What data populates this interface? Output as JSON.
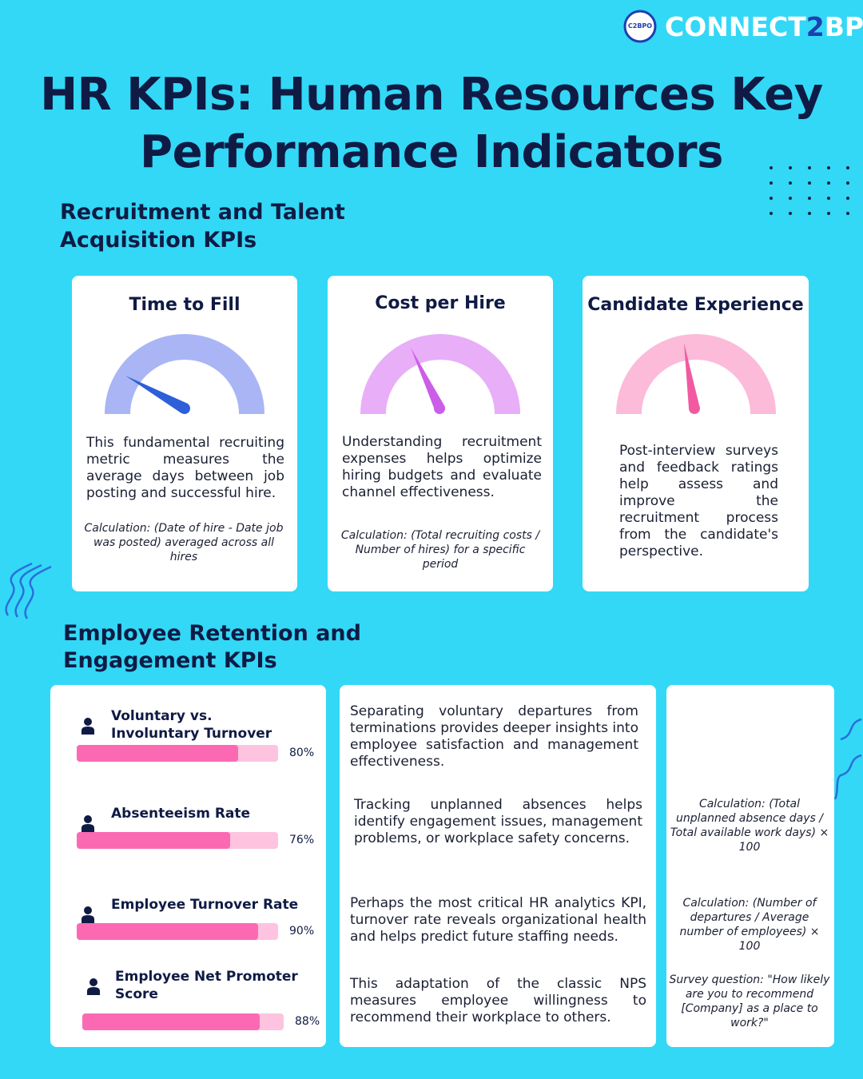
{
  "logo": {
    "icon": "C2BPO",
    "name": [
      "CONNECT",
      "2",
      "BPO"
    ]
  },
  "header": {
    "title": [
      "HR KPIs: Human Resources Key",
      "Performance Indicators"
    ]
  },
  "recruitment": {
    "heading": [
      "Recruitment and Talent",
      "Acquisition KPIs"
    ],
    "cards": [
      {
        "title": "Time to Fill",
        "description": "This fundamental recruiting metric measures the average days between job posting and successful hire.",
        "calculation": "Calculation: (Date of hire - Date job was posted) averaged across all hires"
      },
      {
        "title": "Cost per Hire",
        "description": "Understanding recruitment expenses helps optimize hiring budgets and evaluate channel effectiveness.",
        "calculation": "Calculation: (Total recruiting costs / Number of hires) for a specific period"
      },
      {
        "title": "Candidate Experience",
        "description": "Post-interview surveys and feedback ratings help assess and improve the recruitment process from the candidate's perspective."
      }
    ]
  },
  "retention": {
    "heading": [
      "Employee Retention and",
      "Engagement KPIs"
    ],
    "metrics": [
      {
        "label": "Voluntary vs. Involuntary Turnover",
        "score": {
          "value": 80,
          "label": "80%"
        }
      },
      {
        "label": "Absenteeism Rate",
        "score": {
          "value": 76,
          "label": "76%"
        }
      },
      {
        "label": "Employee Turnover Rate",
        "score": {
          "value": 90,
          "label": "90%"
        }
      },
      {
        "label": "Employee Net Promoter Score",
        "score": {
          "value": 88,
          "label": "88%"
        }
      }
    ],
    "descriptions": [
      "Separating voluntary departures from terminations provides deeper insights into employee satisfaction and management effectiveness.",
      "Tracking unplanned absences helps identify engagement issues, management problems, or workplace safety concerns.",
      "Perhaps the most critical HR analytics KPI, turnover rate reveals organizational health and helps predict future staffing needs.",
      "This adaptation of the classic NPS measures employee willingness to recommend their workplace to others."
    ],
    "calculations": [
      "Calculation: (Total unplanned absence days / Total available work days) × 100",
      "Calculation: (Number of departures / Average number of employees) × 100",
      "Survey question: \"How likely are you to recommend [Company] as a place to work?\""
    ]
  }
}
